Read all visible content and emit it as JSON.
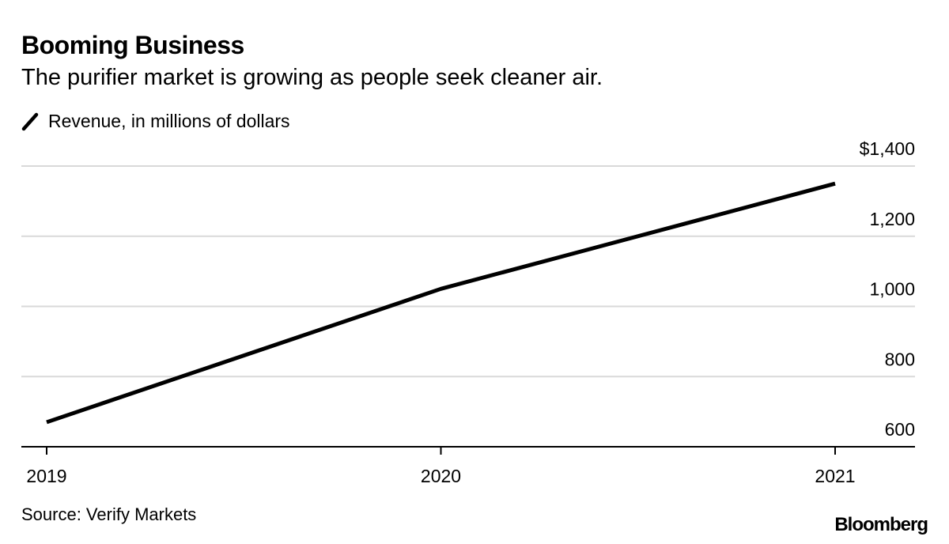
{
  "title": "Booming Business",
  "subtitle": "The purifier market is growing as people seek cleaner air.",
  "source": "Source: Verify Markets",
  "logo": "Bloomberg",
  "colors": {
    "line": "#000000",
    "grid": "#d9d9d9",
    "axis": "#000000"
  },
  "chart_data": {
    "type": "line",
    "categories": [
      "2019",
      "2020",
      "2021"
    ],
    "series": [
      {
        "name": "Revenue, in millions of dollars",
        "values": [
          670,
          1050,
          1350
        ]
      }
    ],
    "ylim": [
      600,
      1400
    ],
    "yticks": [
      600,
      800,
      1000,
      1200,
      1400
    ],
    "ytick_labels": [
      "600",
      "800",
      "1,000",
      "1,200",
      "$1,400"
    ],
    "xtick_labels": [
      "2019",
      "2020",
      "2021"
    ],
    "grid": true,
    "y_axis_position": "right",
    "legend": "top-left"
  }
}
